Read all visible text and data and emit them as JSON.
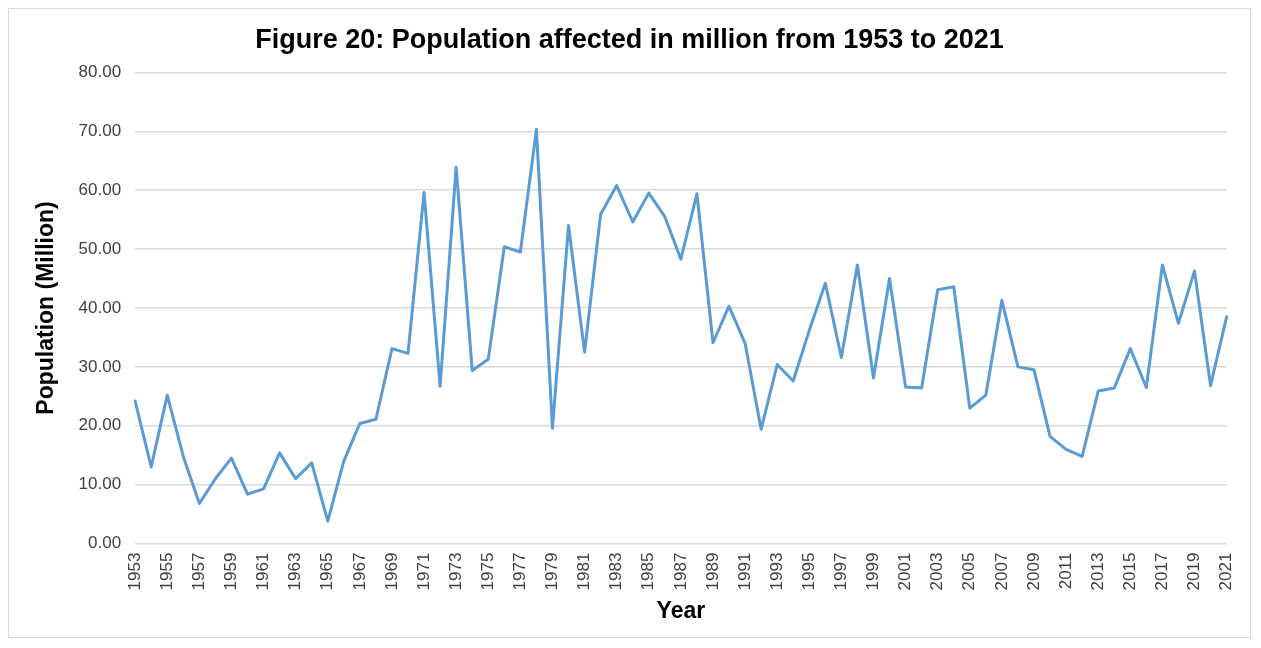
{
  "chart_data": {
    "type": "line",
    "title": "Figure 20: Population affected in million from 1953 to 2021",
    "xlabel": "Year",
    "ylabel": "Population (Million)",
    "categories": [
      "1953",
      null,
      "1955",
      null,
      "1957",
      null,
      "1959",
      null,
      "1961",
      null,
      "1963",
      null,
      "1965",
      null,
      "1967",
      null,
      "1969",
      null,
      "1971",
      null,
      "1973",
      null,
      "1975",
      null,
      "1977",
      null,
      "1979",
      null,
      "1981",
      null,
      "1983",
      null,
      "1985",
      null,
      "1987",
      null,
      "1989",
      null,
      "1991",
      null,
      "1993",
      null,
      "1995",
      null,
      "1997",
      null,
      "1999",
      null,
      "2001",
      null,
      "2003",
      null,
      "2005",
      null,
      "2007",
      null,
      "2009",
      null,
      "2011",
      null,
      "2013",
      null,
      "2015",
      null,
      "2017",
      null,
      "2019",
      null,
      "2021"
    ],
    "series": [
      {
        "color": "#5b9bd5",
        "values": [
          24.2,
          13,
          25.2,
          14.8,
          6.8,
          11,
          14.5,
          8.4,
          9.3,
          15.4,
          11,
          13.7,
          3.8,
          14,
          20.4,
          21.1,
          33.1,
          32.3,
          59.6,
          26.7,
          63.9,
          29.4,
          31.3,
          50.4,
          49.5,
          70.3,
          19.6,
          54,
          32.5,
          55.9,
          60.8,
          54.6,
          59.5,
          55.5,
          48.3,
          59.4,
          34.1,
          40.3,
          34,
          19.4,
          30.4,
          27.6,
          36.2,
          44.2,
          31.6,
          47.3,
          28.1,
          45,
          26.6,
          26.4,
          43.1,
          43.6,
          23,
          25.2,
          41.3,
          30,
          29.5,
          18.2,
          16,
          14.8,
          25.9,
          26.4,
          33.1,
          26.5,
          47.3,
          37.4,
          46.3,
          26.8,
          38.5
        ]
      }
    ],
    "ylim": [
      0,
      80
    ],
    "yticks": [
      {
        "value": 0,
        "label": "0.00"
      },
      {
        "value": 10,
        "label": "10.00"
      },
      {
        "value": 20,
        "label": "20.00"
      },
      {
        "value": 30,
        "label": "30.00"
      },
      {
        "value": 40,
        "label": "40.00"
      },
      {
        "value": 50,
        "label": "50.00"
      },
      {
        "value": 60,
        "label": "60.00"
      },
      {
        "value": 70,
        "label": "70.00"
      },
      {
        "value": 80,
        "label": "80.00"
      }
    ],
    "grid": "y",
    "legend": false,
    "marker": "none",
    "line_style": "solid"
  }
}
